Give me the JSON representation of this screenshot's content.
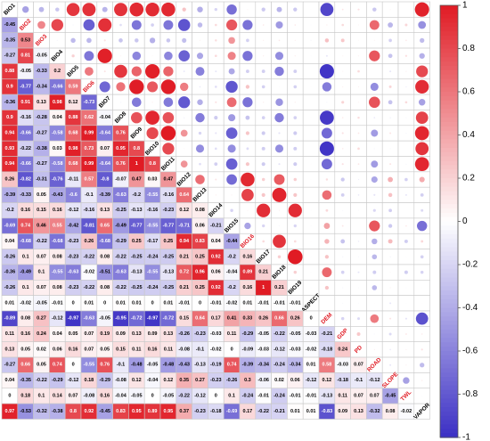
{
  "chart_data": {
    "type": "heatmap",
    "variables": [
      "BIO1",
      "BIO2",
      "BIO3",
      "BIO4",
      "BIO5",
      "BIO6",
      "BIO7",
      "BIO8",
      "BIO9",
      "BIO10",
      "BIO11",
      "BIO12",
      "BIO13",
      "BIO14",
      "BIO15",
      "BIO16",
      "BIO17",
      "BIO18",
      "BIO19",
      "ASPECT",
      "DEM",
      "GDP",
      "PD",
      "ROAD",
      "SLOPE",
      "TWL",
      "VAPOR"
    ],
    "highlighted_variables": [
      "BIO2",
      "BIO3",
      "BIO6",
      "BIO16",
      "DEM",
      "GDP",
      "PD",
      "ROAD",
      "SLOPE",
      "TWL"
    ],
    "matrix": [
      [
        null
      ],
      [
        -0.45,
        null
      ],
      [
        -0.35,
        0.53,
        null
      ],
      [
        -0.27,
        0.81,
        -0.05,
        null
      ],
      [
        0.88,
        -0.05,
        -0.33,
        0.2,
        null
      ],
      [
        0.9,
        -0.77,
        -0.34,
        -0.66,
        0.59,
        null
      ],
      [
        -0.36,
        0.91,
        0.13,
        0.98,
        0.12,
        -0.73,
        null
      ],
      [
        0.9,
        -0.16,
        -0.28,
        0.04,
        0.88,
        0.62,
        -0.04,
        null
      ],
      [
        0.94,
        -0.66,
        -0.27,
        -0.58,
        0.68,
        0.99,
        -0.64,
        0.76,
        null
      ],
      [
        0.93,
        -0.22,
        -0.38,
        0.03,
        0.98,
        0.73,
        0.07,
        0.95,
        0.8,
        null
      ],
      [
        0.94,
        -0.66,
        -0.27,
        -0.58,
        0.68,
        0.99,
        -0.64,
        0.76,
        1,
        0.8,
        null
      ],
      [
        0.26,
        -0.82,
        -0.31,
        -0.76,
        -0.11,
        0.57,
        -0.8,
        -0.07,
        0.47,
        0.03,
        0.47,
        null
      ],
      [
        -0.39,
        -0.33,
        0.05,
        -0.43,
        -0.6,
        -0.1,
        -0.39,
        -0.63,
        -0.2,
        -0.55,
        -0.16,
        0.64,
        null
      ],
      [
        -0.2,
        0.16,
        0.15,
        0.16,
        -0.12,
        -0.16,
        0.13,
        -0.25,
        -0.13,
        -0.16,
        -0.23,
        0.12,
        0.08,
        null
      ],
      [
        -0.69,
        0.74,
        0.46,
        0.55,
        -0.42,
        -0.81,
        0.65,
        -0.49,
        -0.77,
        -0.55,
        -0.77,
        -0.71,
        0.06,
        -0.21,
        null
      ],
      [
        0.04,
        -0.68,
        -0.22,
        -0.68,
        -0.23,
        0.26,
        -0.68,
        -0.29,
        0.25,
        -0.17,
        0.25,
        0.94,
        0.83,
        0.04,
        -0.44,
        null
      ],
      [
        -0.26,
        0.1,
        0.07,
        0.08,
        -0.23,
        -0.22,
        0.08,
        -0.22,
        -0.25,
        -0.24,
        -0.25,
        0.21,
        0.25,
        0.92,
        -0.2,
        0.16,
        null
      ],
      [
        -0.36,
        -0.49,
        0.1,
        -0.55,
        -0.63,
        -0.02,
        -0.51,
        -0.63,
        -0.13,
        -0.55,
        -0.13,
        0.72,
        0.96,
        0.06,
        -0.04,
        0.89,
        0.21,
        null
      ],
      [
        -0.26,
        0.1,
        0.07,
        0.08,
        -0.23,
        -0.22,
        0.08,
        -0.22,
        -0.25,
        -0.24,
        -0.25,
        0.21,
        0.25,
        0.92,
        -0.2,
        0.16,
        1,
        0.21,
        null
      ],
      [
        0.01,
        -0.02,
        -0.05,
        -0.01,
        0,
        0.01,
        0,
        0.01,
        0.01,
        0,
        0.01,
        -0.01,
        0,
        -0.01,
        -0.02,
        0.01,
        -0.01,
        -0.01,
        -0.01,
        null
      ],
      [
        -0.89,
        0.08,
        0.27,
        -0.12,
        -0.97,
        -0.63,
        -0.05,
        -0.95,
        -0.72,
        -0.97,
        -0.72,
        0.15,
        0.64,
        0.17,
        0.41,
        0.33,
        0.26,
        0.66,
        0.26,
        0,
        null
      ],
      [
        0.11,
        0.16,
        0.24,
        0.04,
        0.05,
        0.07,
        0.19,
        0.09,
        0.13,
        0.09,
        0.13,
        -0.26,
        -0.23,
        -0.03,
        0.11,
        -0.29,
        -0.05,
        -0.22,
        -0.05,
        -0.03,
        -0.21,
        null
      ],
      [
        0.13,
        0.05,
        0.02,
        0.06,
        0.16,
        0.07,
        0.05,
        0.15,
        0.11,
        0.16,
        0.11,
        -0.08,
        -0.1,
        -0.02,
        0,
        -0.09,
        -0.03,
        -0.12,
        -0.03,
        -0.02,
        -0.18,
        0.24,
        null
      ],
      [
        -0.27,
        0.66,
        0.05,
        0.74,
        0,
        -0.55,
        0.76,
        -0.1,
        -0.48,
        -0.05,
        -0.48,
        -0.43,
        -0.13,
        -0.19,
        0.74,
        -0.39,
        -0.34,
        -0.24,
        -0.34,
        0.01,
        0.58,
        -0.03,
        0.07,
        null
      ],
      [
        0.04,
        -0.35,
        -0.22,
        -0.29,
        -0.12,
        0.18,
        -0.29,
        -0.08,
        0.12,
        -0.04,
        0.12,
        0.35,
        0.27,
        -0.23,
        -0.26,
        0.3,
        -0.06,
        0.02,
        0.06,
        -0.12,
        0.12,
        -0.18,
        -0.1,
        -0.12,
        null
      ],
      [
        0,
        0.18,
        0.1,
        0.14,
        0.07,
        -0.08,
        0.16,
        -0.04,
        -0.05,
        0,
        -0.05,
        -0.22,
        -0.12,
        0,
        0.1,
        -0.24,
        -0.01,
        -0.24,
        -0.01,
        -0.01,
        -0.13,
        0.11,
        0.07,
        0.07,
        -0.45,
        null
      ],
      [
        0.97,
        -0.53,
        -0.32,
        -0.38,
        0.8,
        0.92,
        -0.45,
        0.83,
        0.95,
        0.89,
        0.95,
        0.37,
        -0.23,
        -0.18,
        -0.69,
        0.17,
        -0.22,
        -0.21,
        0.01,
        0.01,
        -0.83,
        0.09,
        0.13,
        -0.32,
        0.08,
        -0.02,
        null
      ]
    ],
    "legend": {
      "ticks": [
        "1",
        "0.8",
        "0.6",
        "0.4",
        "0.2",
        "0",
        "-0.2",
        "-0.4",
        "-0.6",
        "-0.8",
        "-1"
      ],
      "range": [
        -1,
        1
      ],
      "colors": {
        "negative": "#3b2fc4",
        "neutral": "#ffffff",
        "positive": "#e01b24"
      }
    },
    "label_colors": {
      "normal": "#000000",
      "highlight": "#e01b24"
    },
    "grid": true
  }
}
